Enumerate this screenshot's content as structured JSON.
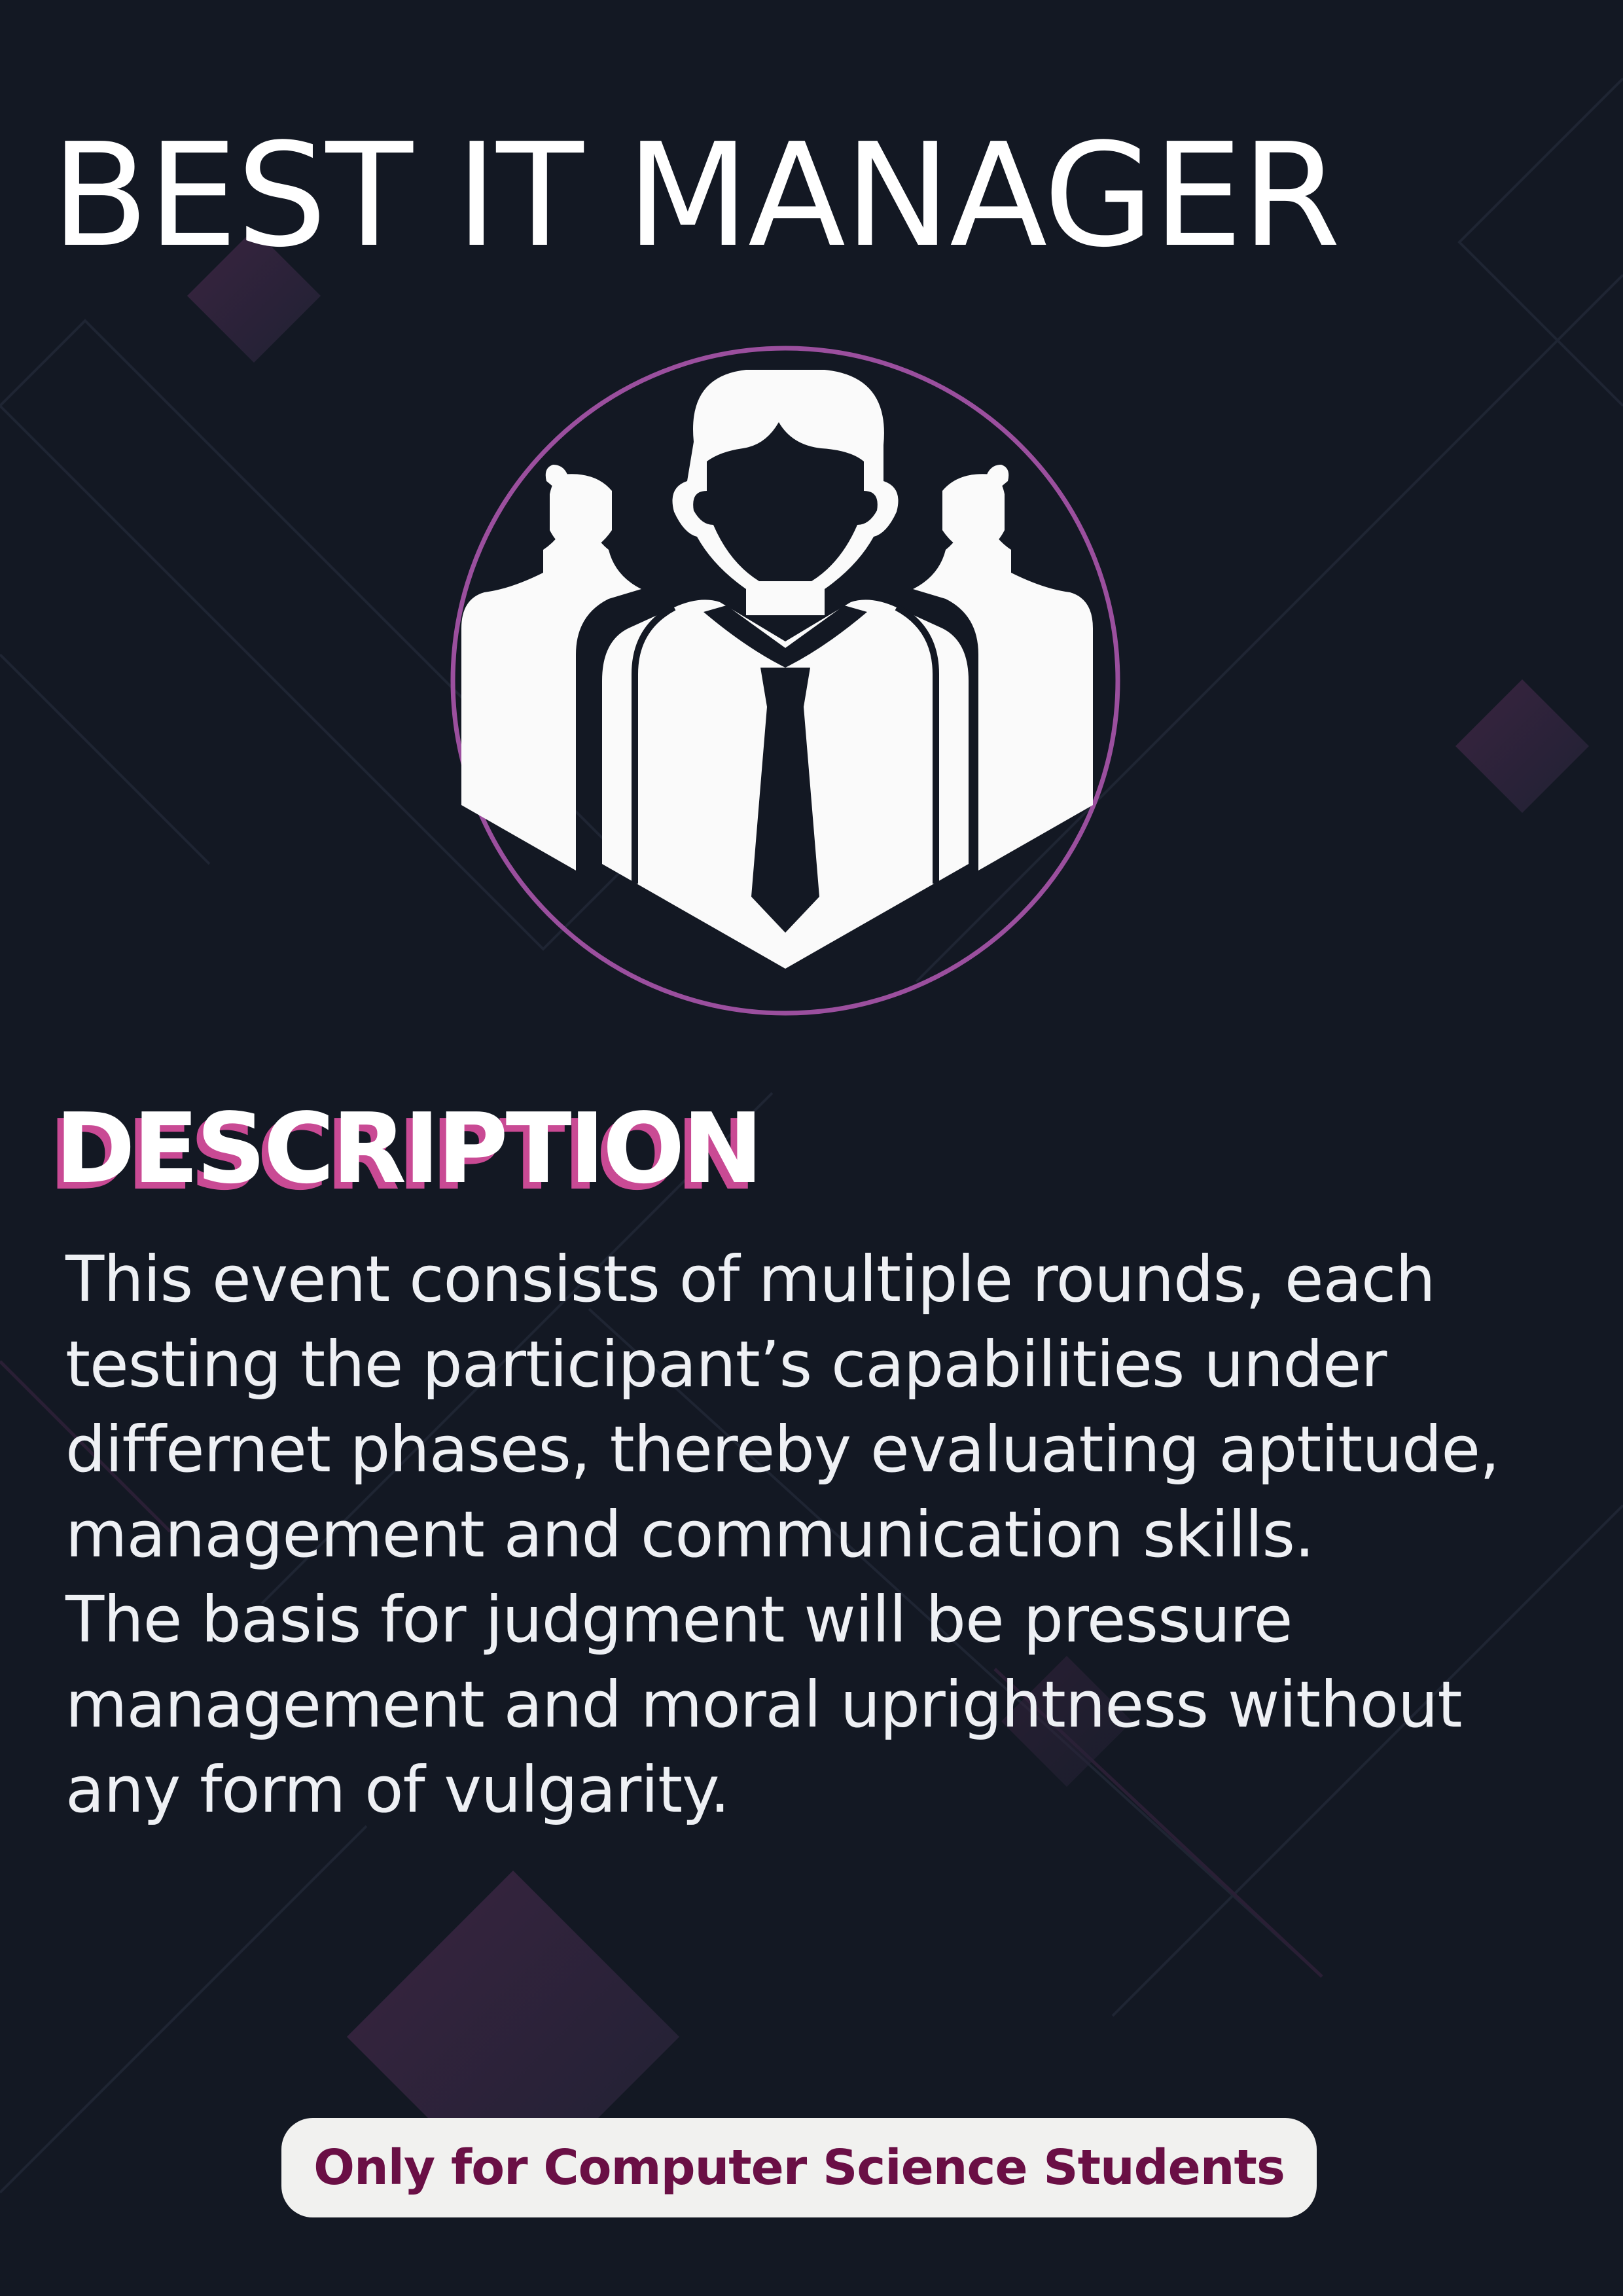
{
  "poster": {
    "title": "BEST IT MANAGER",
    "emblem_icon": "manager-team-icon",
    "section_heading": "DESCRIPTION",
    "description_lines": [
      "This event consists of multiple rounds, each",
      "testing the participant’s capabilities under",
      "differnet phases, thereby evaluating aptitude,",
      "management and communication skills.",
      "The basis for judgment will be pressure",
      "management and moral uprightness without",
      "any form of vulgarity."
    ],
    "eligibility_note": "Only for Computer Science Students"
  },
  "colors": {
    "background": "#131823",
    "accent_pink": "#c94a94",
    "ring_purple": "#9b4f9e",
    "badge_background": "#f1f1ef",
    "badge_text": "#6a0f45"
  }
}
